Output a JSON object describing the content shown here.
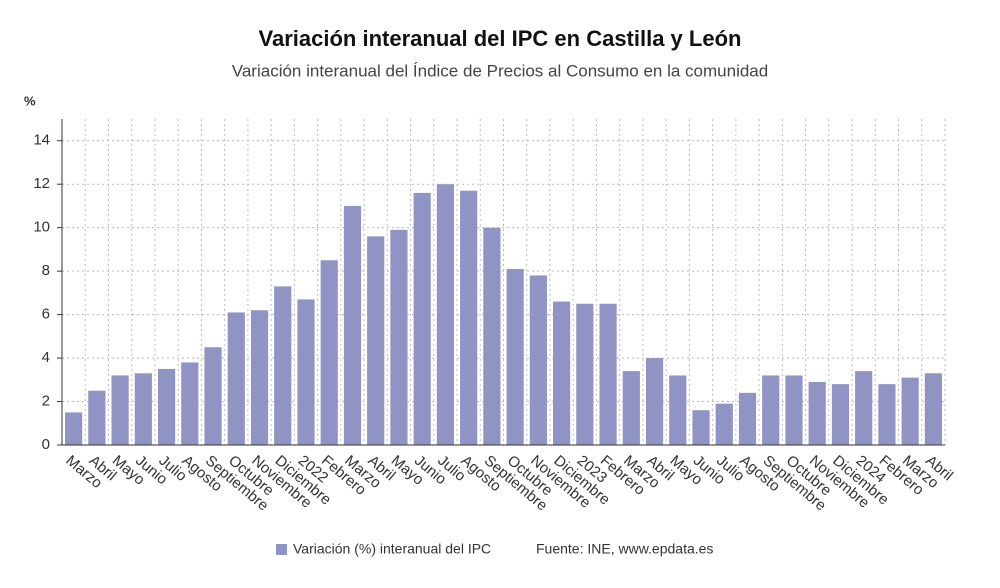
{
  "chart_data": {
    "type": "bar",
    "title": "Variación interanual del IPC en Castilla y León",
    "subtitle": "Variación interanual del Índice de Precios al Consumo en la comunidad",
    "y_label": "%",
    "source": "Fuente: INE, www.epdata.es",
    "categories": [
      "Marzo",
      "Abril",
      "Mayo",
      "Junio",
      "Julio",
      "Agosto",
      "Septiembre",
      "Octubre",
      "Noviembre",
      "Diciembre",
      "2022",
      "Febrero",
      "Marzo",
      "Abril",
      "Mayo",
      "Junio",
      "Julio",
      "Agosto",
      "Septiembre",
      "Octubre",
      "Noviembre",
      "Diciembre",
      "2023",
      "Febrero",
      "Marzo",
      "Abril",
      "Mayo",
      "Junio",
      "Julio",
      "Agosto",
      "Septiembre",
      "Octubre",
      "Noviembre",
      "Diciembre",
      "2024",
      "Febrero",
      "Marzo",
      "Abril"
    ],
    "series": [
      {
        "name": "Variación (%) interanual del IPC",
        "color": "#9094c4",
        "values": [
          1.5,
          2.5,
          3.2,
          3.3,
          3.5,
          3.8,
          4.5,
          6.1,
          6.2,
          7.3,
          6.7,
          8.5,
          11.0,
          9.6,
          9.9,
          11.6,
          12.0,
          11.7,
          10.0,
          8.1,
          7.8,
          6.6,
          6.5,
          6.5,
          3.4,
          4.0,
          3.2,
          1.6,
          1.9,
          2.4,
          3.2,
          3.2,
          2.9,
          2.8,
          3.4,
          2.8,
          3.1,
          3.3
        ]
      }
    ],
    "ylim": [
      0,
      15
    ],
    "yticks": [
      0,
      2,
      4,
      6,
      8,
      10,
      12,
      14
    ],
    "grid": true
  }
}
